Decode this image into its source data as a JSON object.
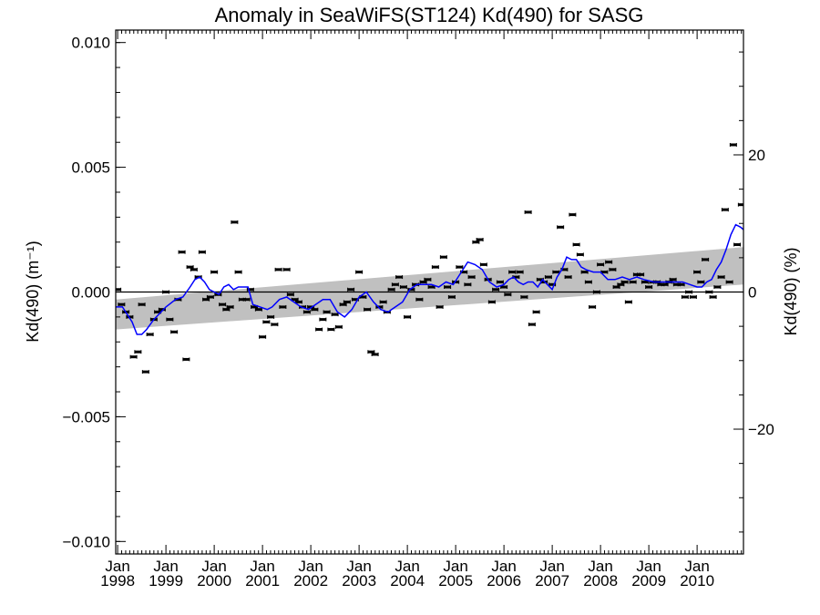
{
  "chart_data": {
    "type": "scatter",
    "title": "Anomaly in SeaWiFS(ST124) Kd(490) for SASG",
    "ylabel": "Kd(490) (m⁻¹)",
    "ylabel_right": "Kd(490) (%)",
    "xlabel": "",
    "xlim": [
      1997.96,
      2010.96
    ],
    "ylim": [
      -0.0105,
      0.0105
    ],
    "ylim_right": [
      -38.2,
      38.2
    ],
    "yticks": [
      {
        "value": -0.01,
        "label": "−0.010"
      },
      {
        "value": -0.005,
        "label": "−0.005"
      },
      {
        "value": 0.0,
        "label": "0.000"
      },
      {
        "value": 0.005,
        "label": "0.005"
      },
      {
        "value": 0.01,
        "label": "0.010"
      }
    ],
    "yticks_right": [
      {
        "value": -20,
        "label": "−20"
      },
      {
        "value": 0,
        "label": "0"
      },
      {
        "value": 20,
        "label": "20"
      }
    ],
    "xticks": [
      {
        "value": 1998,
        "month": "Jan",
        "year": "1998"
      },
      {
        "value": 1999,
        "month": "Jan",
        "year": "1999"
      },
      {
        "value": 2000,
        "month": "Jan",
        "year": "2000"
      },
      {
        "value": 2001,
        "month": "Jan",
        "year": "2001"
      },
      {
        "value": 2002,
        "month": "Jan",
        "year": "2002"
      },
      {
        "value": 2003,
        "month": "Jan",
        "year": "2003"
      },
      {
        "value": 2004,
        "month": "Jan",
        "year": "2004"
      },
      {
        "value": 2005,
        "month": "Jan",
        "year": "2005"
      },
      {
        "value": 2006,
        "month": "Jan",
        "year": "2006"
      },
      {
        "value": 2007,
        "month": "Jan",
        "year": "2007"
      },
      {
        "value": 2008,
        "month": "Jan",
        "year": "2008"
      },
      {
        "value": 2009,
        "month": "Jan",
        "year": "2009"
      },
      {
        "value": 2010,
        "month": "Jan",
        "year": "2010"
      }
    ],
    "zero_line": 0,
    "colors": {
      "smooth": "#0000ff",
      "band": "#c0c0c0",
      "points": "#000000"
    },
    "trend_band": {
      "x": [
        1997.96,
        2010.96
      ],
      "upper": [
        -0.0003,
        0.0018
      ],
      "lower": [
        -0.0015,
        0.0003
      ]
    },
    "series": [
      {
        "type": "errorbar_points",
        "points": [
          [
            1998.0,
            0.0001
          ],
          [
            1998.08,
            -0.0005
          ],
          [
            1998.17,
            -0.0008
          ],
          [
            1998.25,
            -0.001
          ],
          [
            1998.33,
            -0.0026
          ],
          [
            1998.42,
            -0.0024
          ],
          [
            1998.5,
            -0.0005
          ],
          [
            1998.58,
            -0.0032
          ],
          [
            1998.67,
            -0.0017
          ],
          [
            1998.75,
            -0.0011
          ],
          [
            1998.83,
            -0.0008
          ],
          [
            1998.92,
            -0.0007
          ],
          [
            1999.0,
            0.0
          ],
          [
            1999.08,
            -0.0011
          ],
          [
            1999.17,
            -0.0016
          ],
          [
            1999.25,
            -0.0003
          ],
          [
            1999.33,
            0.0016
          ],
          [
            1999.42,
            -0.0027
          ],
          [
            1999.5,
            0.001
          ],
          [
            1999.58,
            0.0009
          ],
          [
            1999.67,
            0.0006
          ],
          [
            1999.75,
            0.0016
          ],
          [
            1999.83,
            -0.0003
          ],
          [
            1999.92,
            -0.0002
          ],
          [
            2000.0,
            0.0008
          ],
          [
            2000.08,
            -0.0001
          ],
          [
            2000.17,
            -0.0005
          ],
          [
            2000.25,
            -0.0007
          ],
          [
            2000.33,
            -0.0006
          ],
          [
            2000.42,
            0.0028
          ],
          [
            2000.5,
            0.0008
          ],
          [
            2000.58,
            -0.0003
          ],
          [
            2000.67,
            -0.0003
          ],
          [
            2000.75,
            0.0001
          ],
          [
            2000.83,
            -0.0006
          ],
          [
            2000.92,
            -0.0007
          ],
          [
            2001.0,
            -0.0018
          ],
          [
            2001.08,
            -0.0012
          ],
          [
            2001.17,
            -0.001
          ],
          [
            2001.25,
            -0.0013
          ],
          [
            2001.33,
            0.0009
          ],
          [
            2001.42,
            -0.0006
          ],
          [
            2001.5,
            0.0009
          ],
          [
            2001.58,
            -0.0001
          ],
          [
            2001.67,
            -0.0003
          ],
          [
            2001.75,
            -0.0004
          ],
          [
            2001.83,
            -0.0006
          ],
          [
            2001.92,
            -0.0008
          ],
          [
            2002.0,
            -0.0006
          ],
          [
            2002.08,
            -0.0007
          ],
          [
            2002.17,
            -0.0015
          ],
          [
            2002.25,
            -0.0011
          ],
          [
            2002.33,
            -0.0008
          ],
          [
            2002.42,
            -0.0015
          ],
          [
            2002.5,
            -0.0009
          ],
          [
            2002.58,
            -0.0014
          ],
          [
            2002.67,
            -0.0005
          ],
          [
            2002.75,
            -0.0004
          ],
          [
            2002.83,
            0.0001
          ],
          [
            2002.92,
            -0.0003
          ],
          [
            2003.0,
            0.0008
          ],
          [
            2003.08,
            -0.0002
          ],
          [
            2003.17,
            -0.0007
          ],
          [
            2003.25,
            -0.0024
          ],
          [
            2003.33,
            -0.0025
          ],
          [
            2003.42,
            -0.0006
          ],
          [
            2003.5,
            -0.0004
          ],
          [
            2003.58,
            -0.0008
          ],
          [
            2003.67,
            0.0001
          ],
          [
            2003.75,
            0.0003
          ],
          [
            2003.83,
            0.0006
          ],
          [
            2003.92,
            0.0002
          ],
          [
            2004.0,
            -0.001
          ],
          [
            2004.08,
            0.0001
          ],
          [
            2004.17,
            0.0003
          ],
          [
            2004.25,
            -0.0003
          ],
          [
            2004.33,
            0.0004
          ],
          [
            2004.42,
            0.0005
          ],
          [
            2004.5,
            0.0002
          ],
          [
            2004.58,
            0.001
          ],
          [
            2004.67,
            -0.0006
          ],
          [
            2004.75,
            0.0014
          ],
          [
            2004.83,
            0.0002
          ],
          [
            2004.92,
            -0.0002
          ],
          [
            2005.0,
            0.0004
          ],
          [
            2005.08,
            0.001
          ],
          [
            2005.17,
            0.0008
          ],
          [
            2005.25,
            0.0003
          ],
          [
            2005.33,
            0.0006
          ],
          [
            2005.42,
            0.002
          ],
          [
            2005.5,
            0.0021
          ],
          [
            2005.58,
            0.0011
          ],
          [
            2005.67,
            0.0005
          ],
          [
            2005.75,
            -0.0004
          ],
          [
            2005.83,
            0.0001
          ],
          [
            2005.92,
            0.0004
          ],
          [
            2006.0,
            0.0002
          ],
          [
            2006.08,
            -0.0001
          ],
          [
            2006.17,
            0.0008
          ],
          [
            2006.25,
            0.0006
          ],
          [
            2006.33,
            0.0008
          ],
          [
            2006.42,
            -0.0002
          ],
          [
            2006.5,
            0.0032
          ],
          [
            2006.58,
            -0.0013
          ],
          [
            2006.67,
            -0.0008
          ],
          [
            2006.75,
            0.0005
          ],
          [
            2006.83,
            0.0004
          ],
          [
            2006.92,
            0.0006
          ],
          [
            2007.0,
            0.0003
          ],
          [
            2007.08,
            0.0008
          ],
          [
            2007.17,
            0.0026
          ],
          [
            2007.25,
            0.0009
          ],
          [
            2007.33,
            0.0006
          ],
          [
            2007.42,
            0.0031
          ],
          [
            2007.5,
            0.0019
          ],
          [
            2007.58,
            0.0015
          ],
          [
            2007.67,
            0.0008
          ],
          [
            2007.75,
            0.0004
          ],
          [
            2007.83,
            -0.0006
          ],
          [
            2007.92,
            0.0
          ],
          [
            2008.0,
            0.0011
          ],
          [
            2008.08,
            0.0008
          ],
          [
            2008.17,
            0.0012
          ],
          [
            2008.25,
            0.0009
          ],
          [
            2008.33,
            0.0002
          ],
          [
            2008.42,
            0.0003
          ],
          [
            2008.5,
            0.0004
          ],
          [
            2008.58,
            -0.0004
          ],
          [
            2008.67,
            0.0004
          ],
          [
            2008.75,
            0.0007
          ],
          [
            2008.83,
            0.0007
          ],
          [
            2008.92,
            0.0004
          ],
          [
            2009.0,
            0.0002
          ],
          [
            2009.08,
            0.0004
          ],
          [
            2009.17,
            0.0004
          ],
          [
            2009.25,
            0.0003
          ],
          [
            2009.33,
            0.0003
          ],
          [
            2009.42,
            0.0004
          ],
          [
            2009.5,
            0.0005
          ],
          [
            2009.58,
            0.0003
          ],
          [
            2009.67,
            0.0003
          ],
          [
            2009.75,
            -0.0002
          ],
          [
            2009.83,
            0.0
          ],
          [
            2009.92,
            -0.0002
          ],
          [
            2010.0,
            0.0008
          ],
          [
            2010.08,
            0.0004
          ],
          [
            2010.17,
            0.0013
          ],
          [
            2010.25,
            0.0
          ],
          [
            2010.33,
            -0.0002
          ],
          [
            2010.42,
            0.0002
          ],
          [
            2010.5,
            0.0006
          ],
          [
            2010.58,
            0.0033
          ],
          [
            2010.67,
            0.0004
          ],
          [
            2010.75,
            0.0059
          ],
          [
            2010.83,
            0.0019
          ],
          [
            2010.92,
            0.0035
          ]
        ]
      },
      {
        "type": "smooth_line",
        "x": [
          1997.96,
          1998.1,
          1998.2,
          1998.3,
          1998.4,
          1998.5,
          1998.6,
          1998.75,
          1998.9,
          1999.0,
          1999.2,
          1999.35,
          1999.5,
          1999.6,
          1999.7,
          1999.8,
          1999.9,
          2000.0,
          2000.1,
          2000.2,
          2000.3,
          2000.4,
          2000.5,
          2000.55,
          2000.6,
          2000.7,
          2000.8,
          2000.95,
          2001.1,
          2001.2,
          2001.35,
          2001.5,
          2001.65,
          2001.8,
          2001.95,
          2002.1,
          2002.25,
          2002.4,
          2002.55,
          2002.7,
          2002.85,
          2003.0,
          2003.15,
          2003.3,
          2003.45,
          2003.6,
          2003.75,
          2003.9,
          2004.05,
          2004.2,
          2004.35,
          2004.5,
          2004.65,
          2004.8,
          2004.95,
          2005.05,
          2005.15,
          2005.25,
          2005.4,
          2005.55,
          2005.7,
          2005.85,
          2006.0,
          2006.1,
          2006.2,
          2006.3,
          2006.4,
          2006.5,
          2006.6,
          2006.7,
          2006.8,
          2006.9,
          2007.0,
          2007.1,
          2007.2,
          2007.3,
          2007.4,
          2007.5,
          2007.6,
          2007.7,
          2007.85,
          2008.0,
          2008.15,
          2008.3,
          2008.45,
          2008.6,
          2008.75,
          2008.9,
          2009.1,
          2009.3,
          2009.5,
          2009.7,
          2009.85,
          2010.0,
          2010.1,
          2010.2,
          2010.3,
          2010.4,
          2010.5,
          2010.6,
          2010.7,
          2010.8,
          2010.9,
          2010.96
        ],
        "y": [
          -0.0006,
          -0.0006,
          -0.0009,
          -0.0012,
          -0.0017,
          -0.0017,
          -0.0015,
          -0.0011,
          -0.0008,
          -0.0006,
          -0.0003,
          -0.0002,
          0.0002,
          0.0005,
          0.0006,
          0.0004,
          0.0001,
          0.0,
          -0.0001,
          0.0002,
          0.0003,
          0.0001,
          0.0002,
          0.0002,
          0.0002,
          0.0002,
          -0.0005,
          -0.0006,
          -0.0007,
          -0.0006,
          -0.0003,
          -0.0002,
          -0.0004,
          -0.0006,
          -0.0007,
          -0.0005,
          -0.0003,
          -0.0003,
          -0.0008,
          -0.001,
          -0.0007,
          -0.0002,
          0.0,
          -0.0004,
          -0.0007,
          -0.0008,
          -0.0006,
          -0.0004,
          0.0001,
          0.0003,
          0.0003,
          0.0003,
          0.0002,
          0.0004,
          0.0003,
          0.0006,
          0.0009,
          0.0012,
          0.0011,
          0.0009,
          0.0004,
          0.0002,
          0.0003,
          0.0005,
          0.0006,
          0.0004,
          0.0003,
          0.0004,
          0.0004,
          0.0002,
          0.0005,
          0.0003,
          0.0001,
          0.0006,
          0.0009,
          0.0014,
          0.0013,
          0.0013,
          0.001,
          0.0009,
          0.0008,
          0.0008,
          0.0005,
          0.0005,
          0.0006,
          0.0005,
          0.0006,
          0.0005,
          0.0004,
          0.0004,
          0.0004,
          0.0004,
          0.0003,
          0.0002,
          0.0002,
          0.0004,
          0.0005,
          0.0009,
          0.0012,
          0.0017,
          0.0023,
          0.0027,
          0.0026,
          0.0025
        ]
      }
    ]
  }
}
